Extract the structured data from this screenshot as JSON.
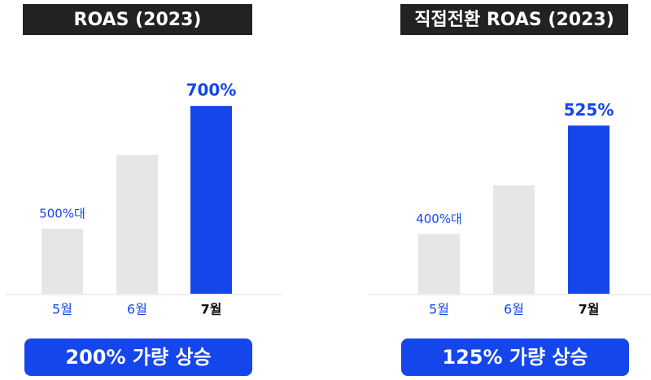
{
  "chart_data": [
    {
      "type": "bar",
      "title": "ROAS (2023)",
      "categories": [
        "5월",
        "6월",
        "7월"
      ],
      "values": [
        500,
        620,
        700
      ],
      "value_labels": [
        "500%대",
        null,
        "700%"
      ],
      "colors": [
        "#e6e6e6",
        "#e6e6e6",
        "#1546ec"
      ],
      "ylim": [
        394,
        740
      ],
      "annotation": "200% 가량 상승"
    },
    {
      "type": "bar",
      "title": "직접전환 ROAS (2023)",
      "categories": [
        "5월",
        "6월",
        "7월"
      ],
      "values": [
        400,
        456,
        525
      ],
      "value_labels": [
        "400%대",
        null,
        "525%"
      ],
      "colors": [
        "#e6e6e6",
        "#e6e6e6",
        "#1546ec"
      ],
      "ylim": [
        331,
        576
      ],
      "annotation": "125% 가량 상승"
    }
  ]
}
